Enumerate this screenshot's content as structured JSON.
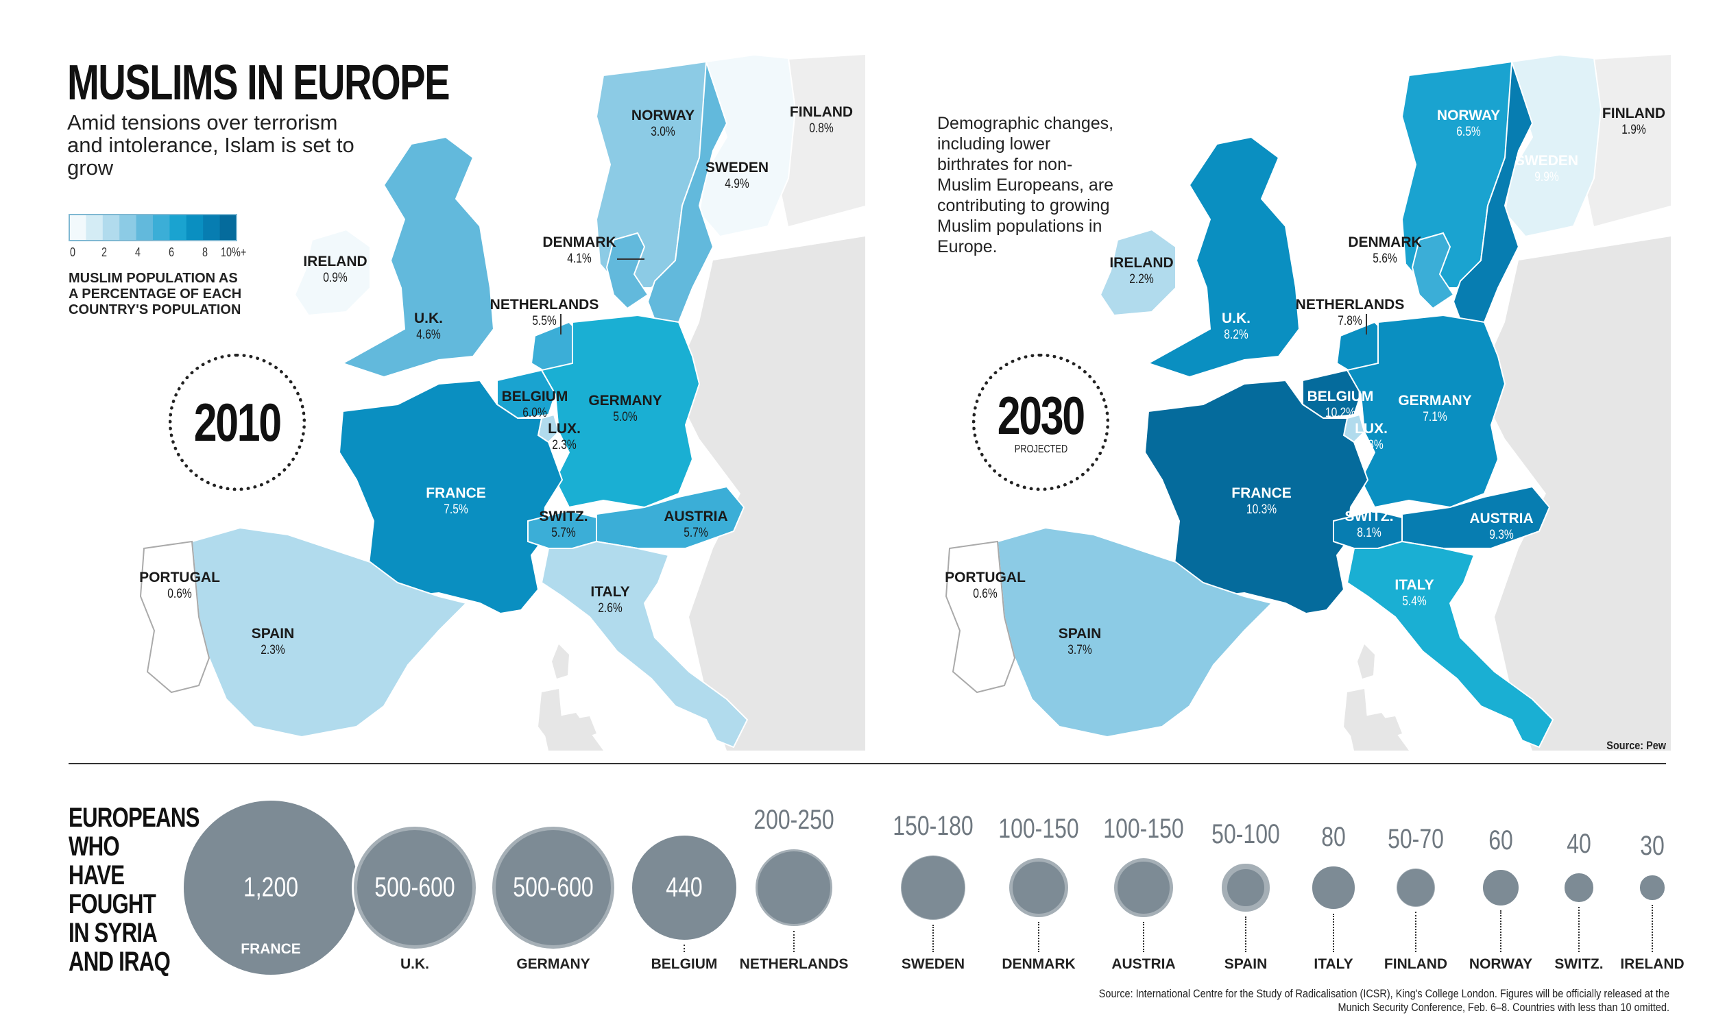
{
  "title": "MUSLIMS IN EUROPE",
  "subtitle": "Amid tensions over terrorism and intolerance, Islam is set to grow",
  "legend": {
    "ticks": [
      "0",
      "2",
      "4",
      "6",
      "8",
      "10%+"
    ],
    "label": "MUSLIM POPULATION AS A PERCENTAGE OF EACH COUNTRY'S POPULATION",
    "colors": [
      "#f2f9fc",
      "#d4ecf5",
      "#b1dbed",
      "#8ccbe5",
      "#62b9dc",
      "#3baed7",
      "#1aa3d0",
      "#0a8fc1",
      "#077db1",
      "#056b9c"
    ]
  },
  "map2010": {
    "year": "2010",
    "countries": [
      {
        "name": "NORWAY",
        "pct": "3.0%",
        "color": "#8ccbe5"
      },
      {
        "name": "SWEDEN",
        "pct": "4.9%",
        "color": "#62b9dc"
      },
      {
        "name": "FINLAND",
        "pct": "0.8%",
        "color": "#f2f9fc"
      },
      {
        "name": "DENMARK",
        "pct": "4.1%",
        "color": "#62b9dc"
      },
      {
        "name": "IRELAND",
        "pct": "0.9%",
        "color": "#f2f9fc"
      },
      {
        "name": "U.K.",
        "pct": "4.6%",
        "color": "#62b9dc"
      },
      {
        "name": "NETHERLANDS",
        "pct": "5.5%",
        "color": "#3baed7"
      },
      {
        "name": "BELGIUM",
        "pct": "6.0%",
        "color": "#1aa3d0"
      },
      {
        "name": "GERMANY",
        "pct": "5.0%",
        "color": "#1aafd3"
      },
      {
        "name": "LUX.",
        "pct": "2.3%",
        "color": "#b1dbed"
      },
      {
        "name": "FRANCE",
        "pct": "7.5%",
        "color": "#0a8fc1"
      },
      {
        "name": "SWITZ.",
        "pct": "5.7%",
        "color": "#3baed7"
      },
      {
        "name": "AUSTRIA",
        "pct": "5.7%",
        "color": "#3baed7"
      },
      {
        "name": "PORTUGAL",
        "pct": "0.6%",
        "color": "#ffffff"
      },
      {
        "name": "SPAIN",
        "pct": "2.3%",
        "color": "#b1dbed"
      },
      {
        "name": "ITALY",
        "pct": "2.6%",
        "color": "#b1dbed"
      }
    ]
  },
  "map2030": {
    "year": "2030",
    "sublabel": "PROJECTED",
    "note": "Demographic changes, including lower birthrates for non-Muslim Europeans, are contributing to growing Muslim populations in Europe.",
    "countries": [
      {
        "name": "NORWAY",
        "pct": "6.5%",
        "color": "#1aa3d0"
      },
      {
        "name": "SWEDEN",
        "pct": "9.9%",
        "color": "#077db1"
      },
      {
        "name": "FINLAND",
        "pct": "1.9%",
        "color": "#e0f2f8"
      },
      {
        "name": "DENMARK",
        "pct": "5.6%",
        "color": "#3baed7"
      },
      {
        "name": "IRELAND",
        "pct": "2.2%",
        "color": "#b1dbed"
      },
      {
        "name": "U.K.",
        "pct": "8.2%",
        "color": "#0a8fc1"
      },
      {
        "name": "NETHERLANDS",
        "pct": "7.8%",
        "color": "#0a8fc1"
      },
      {
        "name": "BELGIUM",
        "pct": "10.2%",
        "color": "#056b9c"
      },
      {
        "name": "GERMANY",
        "pct": "7.1%",
        "color": "#0a8fc1"
      },
      {
        "name": "LUX.",
        "pct": "2.3%",
        "color": "#b1dbed"
      },
      {
        "name": "FRANCE",
        "pct": "10.3%",
        "color": "#056b9c"
      },
      {
        "name": "SWITZ.",
        "pct": "8.1%",
        "color": "#077db1"
      },
      {
        "name": "AUSTRIA",
        "pct": "9.3%",
        "color": "#077db1"
      },
      {
        "name": "PORTUGAL",
        "pct": "0.6%",
        "color": "#ffffff"
      },
      {
        "name": "SPAIN",
        "pct": "3.7%",
        "color": "#8ccbe5"
      },
      {
        "name": "ITALY",
        "pct": "5.4%",
        "color": "#1aafd3"
      }
    ]
  },
  "source_map": "Source: Pew",
  "fighters": {
    "title": "EUROPEANS WHO HAVE FOUGHT IN SYRIA AND IRAQ",
    "items": [
      {
        "country": "FRANCE",
        "value": "1,200",
        "min": 1200,
        "max": 1200
      },
      {
        "country": "U.K.",
        "value": "500-600",
        "min": 500,
        "max": 600
      },
      {
        "country": "GERMANY",
        "value": "500-600",
        "min": 500,
        "max": 600
      },
      {
        "country": "BELGIUM",
        "value": "440",
        "min": 440,
        "max": 440
      },
      {
        "country": "NETHERLANDS",
        "value": "200-250",
        "min": 200,
        "max": 250
      },
      {
        "country": "SWEDEN",
        "value": "150-180",
        "min": 150,
        "max": 180
      },
      {
        "country": "DENMARK",
        "value": "100-150",
        "min": 100,
        "max": 150
      },
      {
        "country": "AUSTRIA",
        "value": "100-150",
        "min": 100,
        "max": 150
      },
      {
        "country": "SPAIN",
        "value": "50-100",
        "min": 50,
        "max": 100
      },
      {
        "country": "ITALY",
        "value": "80",
        "min": 80,
        "max": 80
      },
      {
        "country": "FINLAND",
        "value": "50-70",
        "min": 50,
        "max": 70
      },
      {
        "country": "NORWAY",
        "value": "60",
        "min": 60,
        "max": 60
      },
      {
        "country": "SWITZ.",
        "value": "40",
        "min": 40,
        "max": 40
      },
      {
        "country": "IRELAND",
        "value": "30",
        "min": 30,
        "max": 30
      }
    ],
    "source": "Source: International Centre for the Study of Radicalisation (ICSR), King's College London. Figures will be officially released at the Munich Security Conference, Feb. 6–8. Countries with less than 10 omitted."
  },
  "colors": {
    "bubble_inner": "#7d8b95",
    "bubble_ring": "#a5afb6",
    "land_other": "#e6e6e6",
    "border": "#ffffff"
  }
}
